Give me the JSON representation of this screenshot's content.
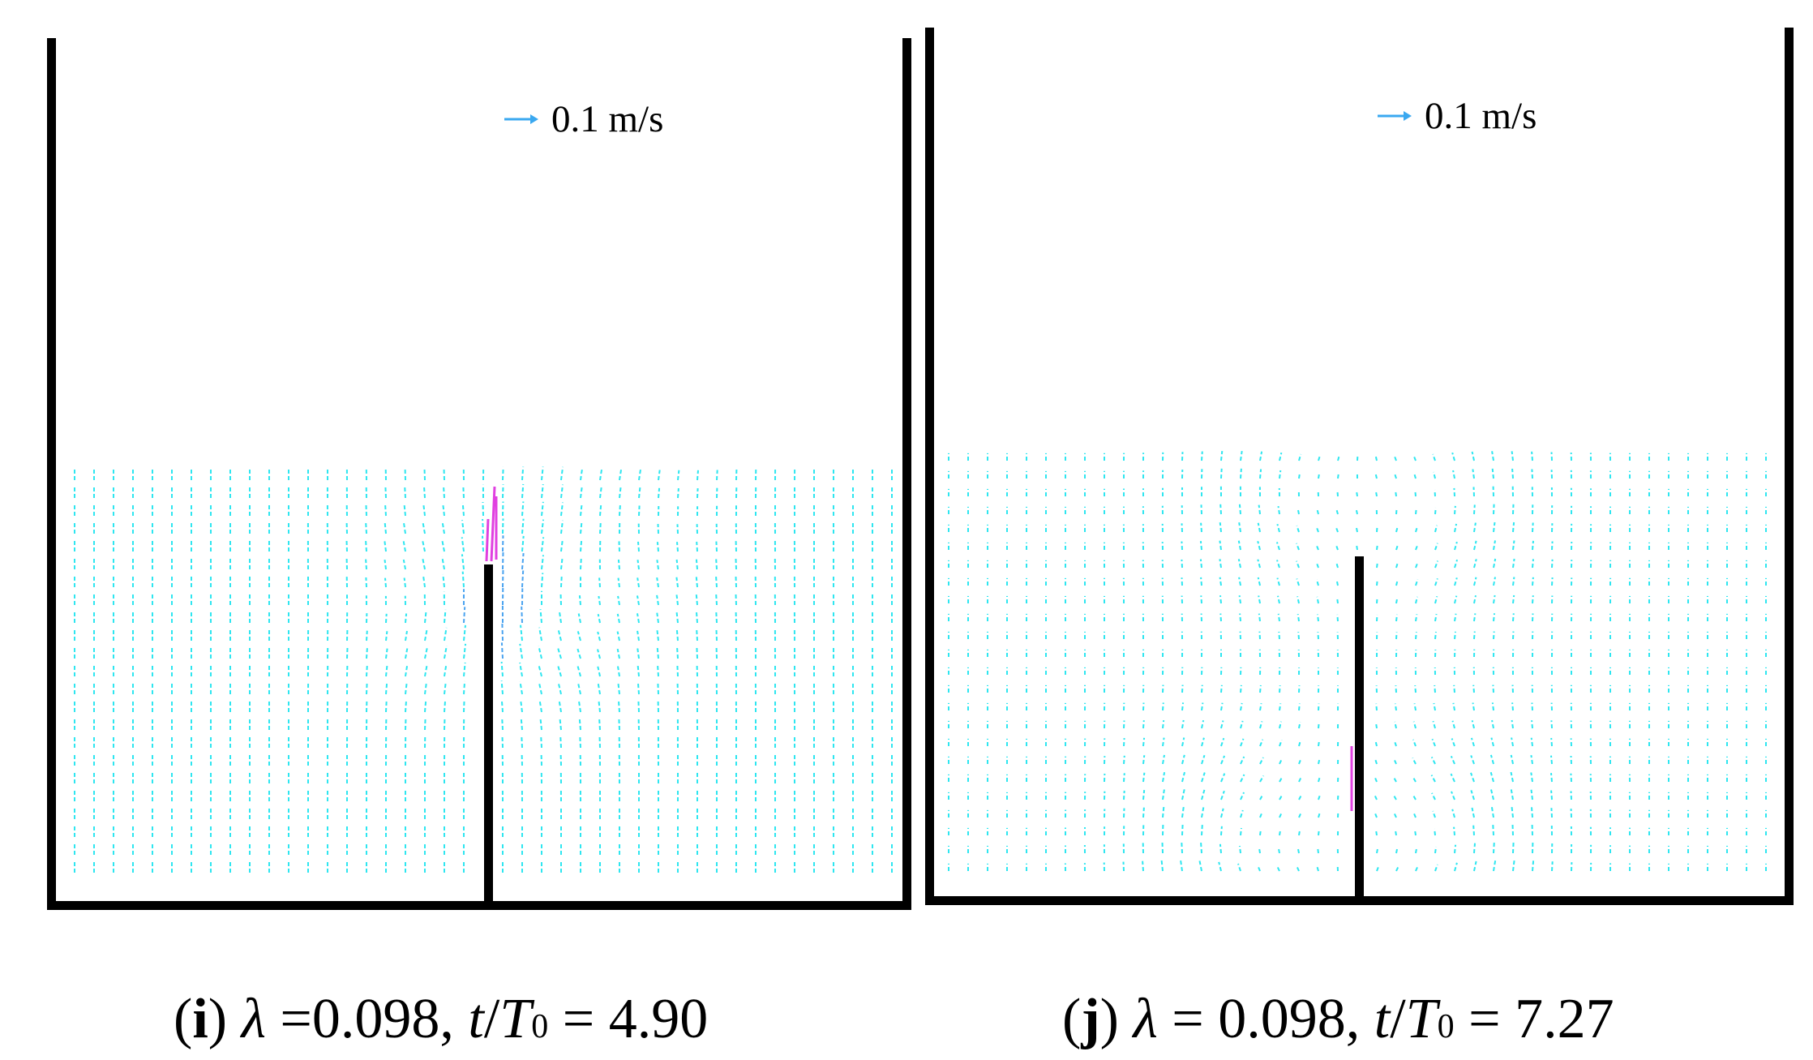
{
  "panels": [
    {
      "id": "i",
      "scale_label": "0.1 m/s",
      "caption": {
        "open": "(",
        "tag": "i",
        "close": ")",
        "lambda_symbol": "λ",
        "lambda_text": " =0.098, ",
        "t_text": "t",
        "slash": "/",
        "T_text": "T",
        "sub_text": "0",
        "value_text": " = 4.90"
      }
    },
    {
      "id": "j",
      "scale_label": "0.1 m/s",
      "caption": {
        "open": "(",
        "tag": "j",
        "close": ")",
        "lambda_symbol": "λ",
        "lambda_text": " = 0.098, ",
        "t_text": "t",
        "slash": "/",
        "T_text": "T",
        "sub_text": "0",
        "value_text": " = 7.27"
      }
    }
  ],
  "colors": {
    "wall": "#000000",
    "vector": "#2ee6f0",
    "vector_strong": "#4aa3f0",
    "highlight": "#e040e0",
    "scale_arrow": "#3aa8f0"
  }
}
